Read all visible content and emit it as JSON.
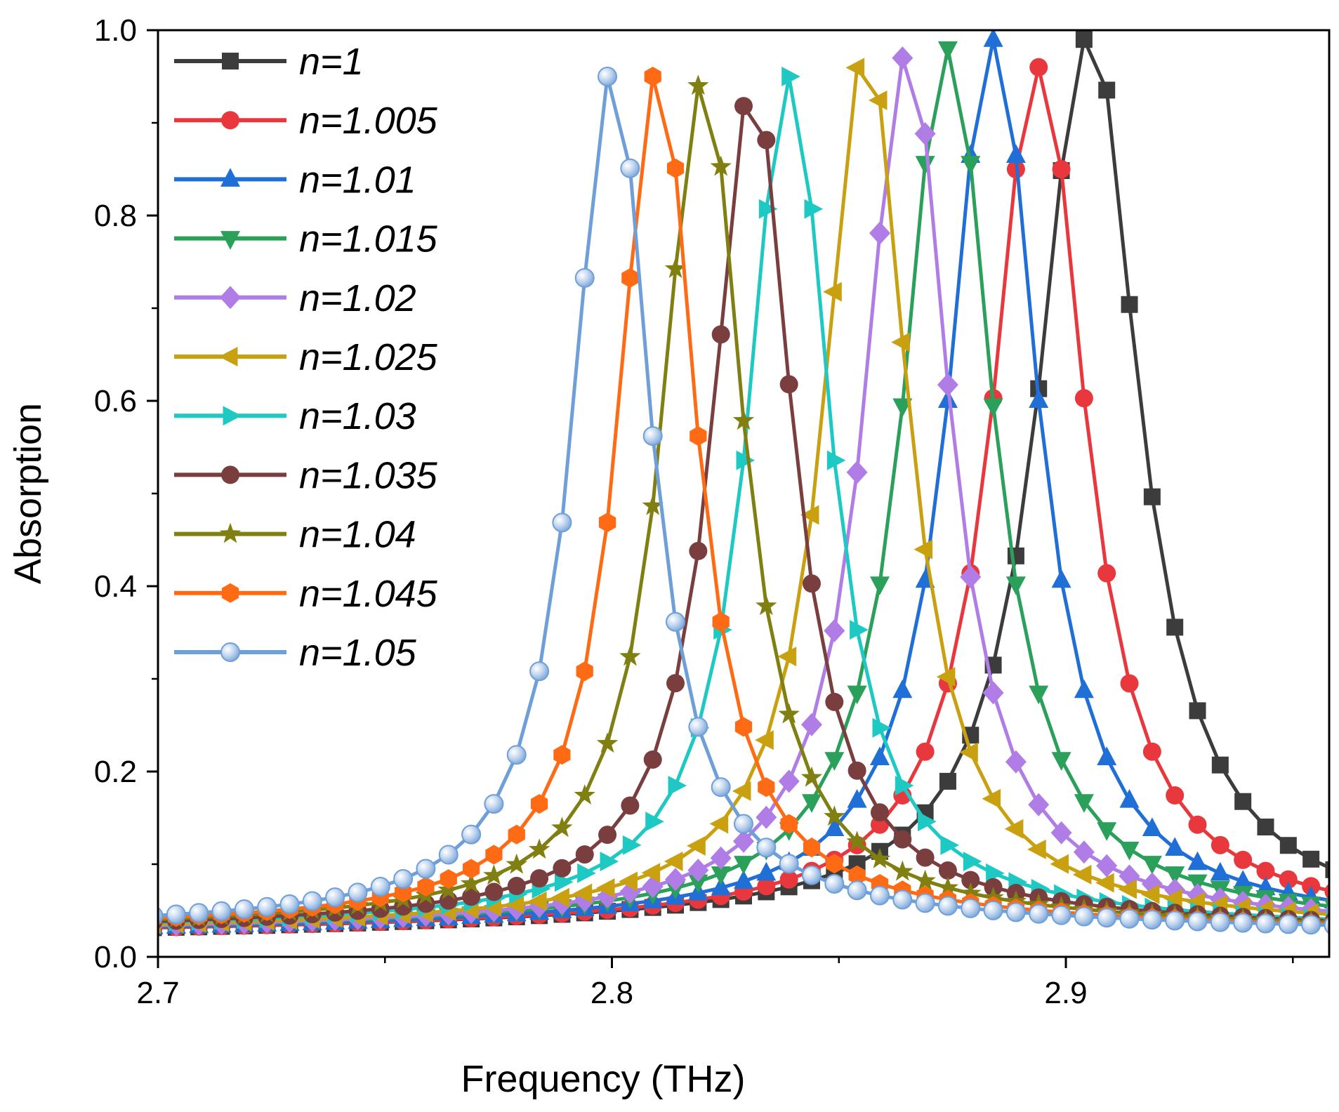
{
  "chart_data": {
    "type": "line",
    "title": "",
    "xlabel": "Frequency (THz)",
    "ylabel": "Absorption",
    "xlim": [
      2.7,
      2.958
    ],
    "ylim": [
      0.0,
      1.0
    ],
    "xticks": [
      2.7,
      2.8,
      2.9
    ],
    "xtick_labels": [
      "2.7",
      "2.8",
      "2.9"
    ],
    "yticks": [
      0.0,
      0.2,
      0.4,
      0.6,
      0.8,
      1.0
    ],
    "ytick_labels": [
      "0.0",
      "0.2",
      "0.4",
      "0.6",
      "0.8",
      "1.0"
    ],
    "grid": false,
    "legend_position": "top-left",
    "series": [
      {
        "name": "n=1",
        "color": "#3c3c3c",
        "marker": "square",
        "peak": 2.905,
        "peak_value": 0.99,
        "width": 0.013,
        "base": 0.02
      },
      {
        "name": "n=1.005",
        "color": "#e8383d",
        "marker": "circle",
        "peak": 2.894,
        "peak_value": 0.96,
        "width": 0.012,
        "base": 0.02
      },
      {
        "name": "n=1.01",
        "color": "#1f6fd6",
        "marker": "triangle-up",
        "peak": 2.884,
        "peak_value": 0.99,
        "width": 0.0115,
        "base": 0.02
      },
      {
        "name": "n=1.015",
        "color": "#2aa05a",
        "marker": "triangle-down",
        "peak": 2.874,
        "peak_value": 0.98,
        "width": 0.0115,
        "base": 0.02
      },
      {
        "name": "n=1.02",
        "color": "#b07de6",
        "marker": "diamond",
        "peak": 2.865,
        "peak_value": 0.97,
        "width": 0.011,
        "base": 0.02
      },
      {
        "name": "n=1.025",
        "color": "#c9a010",
        "marker": "triangle-left",
        "peak": 2.856,
        "peak_value": 0.96,
        "width": 0.011,
        "base": 0.02
      },
      {
        "name": "n=1.03",
        "color": "#1fc9c3",
        "marker": "triangle-right",
        "peak": 2.839,
        "peak_value": 0.95,
        "width": 0.0105,
        "base": 0.02
      },
      {
        "name": "n=1.035",
        "color": "#7a3e3e",
        "marker": "circle",
        "peak": 2.831,
        "peak_value": 0.92,
        "width": 0.0105,
        "base": 0.02
      },
      {
        "name": "n=1.04",
        "color": "#808012",
        "marker": "star",
        "peak": 2.82,
        "peak_value": 0.94,
        "width": 0.0105,
        "base": 0.02
      },
      {
        "name": "n=1.045",
        "color": "#ff6a14",
        "marker": "hexagon",
        "peak": 2.81,
        "peak_value": 0.95,
        "width": 0.01,
        "base": 0.02
      },
      {
        "name": "n=1.05",
        "color": "#6f9fd8",
        "marker": "sphere",
        "peak": 2.8,
        "peak_value": 0.95,
        "width": 0.01,
        "base": 0.02
      }
    ]
  }
}
